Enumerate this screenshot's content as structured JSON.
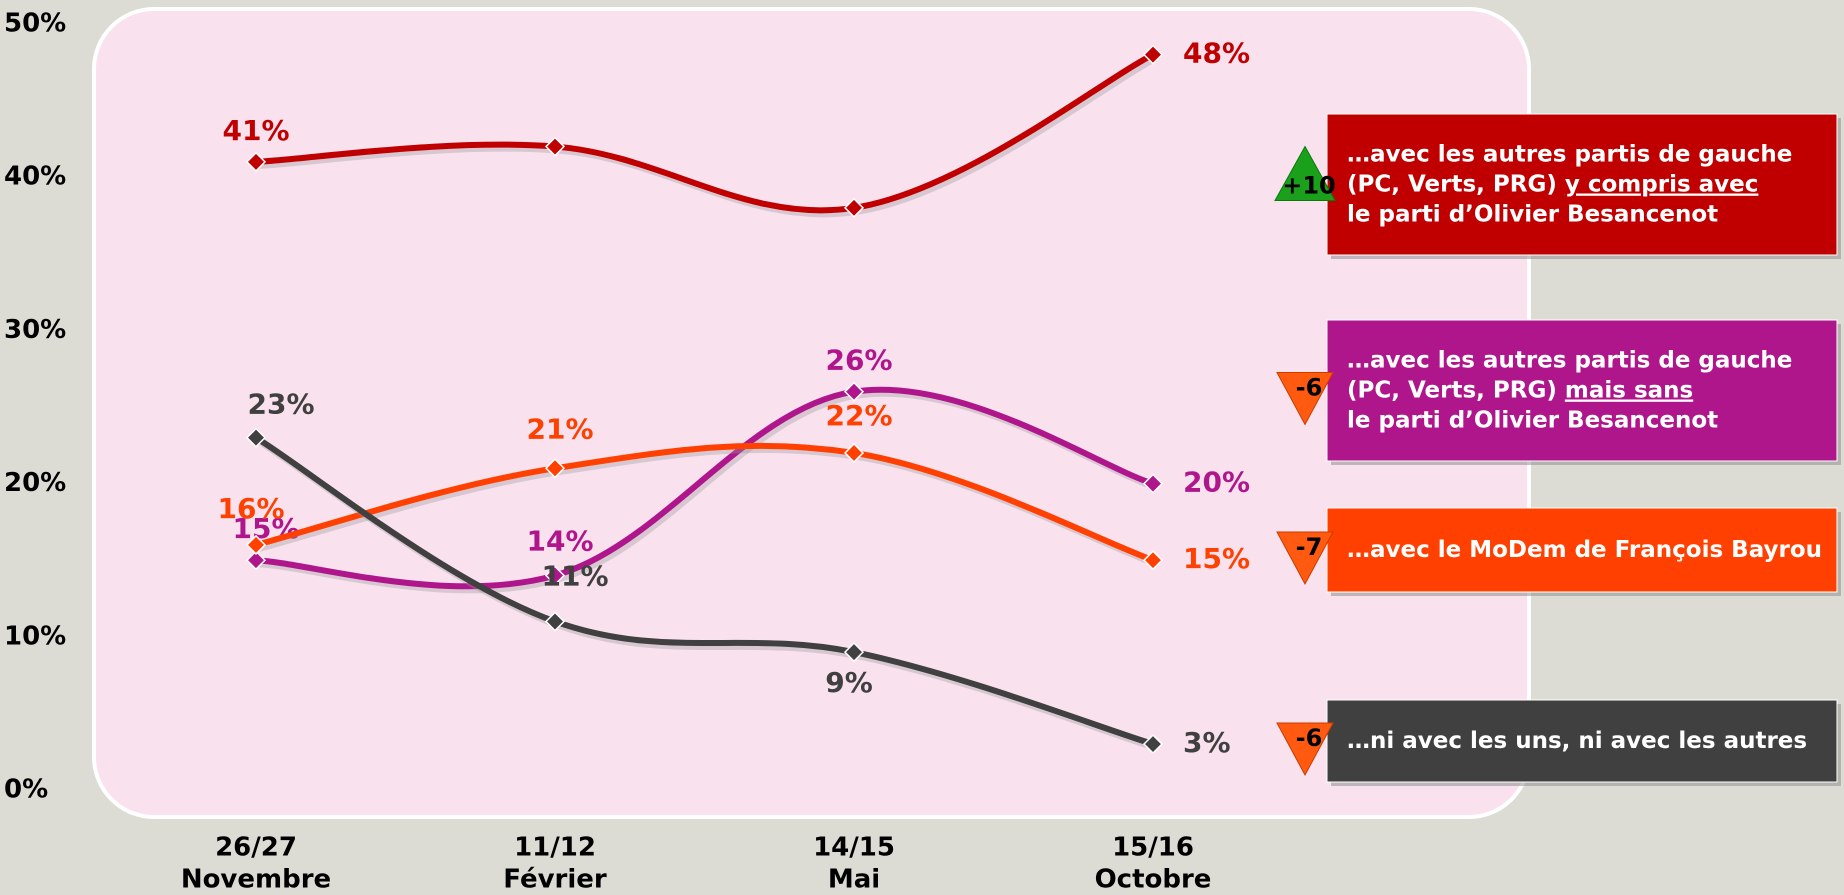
{
  "chart_data": {
    "type": "line",
    "categories": [
      [
        "26/27",
        "Novembre"
      ],
      [
        "11/12",
        "Février"
      ],
      [
        "14/15",
        "Mai"
      ],
      [
        "15/16",
        "Octobre"
      ]
    ],
    "ylim": [
      0,
      50
    ],
    "yticks": [
      {
        "value": 0,
        "label": "0%"
      },
      {
        "value": 10,
        "label": "10%"
      },
      {
        "value": 20,
        "label": "20%"
      },
      {
        "value": 30,
        "label": "30%"
      },
      {
        "value": 40,
        "label": "40%"
      },
      {
        "value": 50,
        "label": "50%"
      }
    ],
    "series": [
      {
        "name": [
          [
            {
              "text": "…avec les autres partis de gauche"
            }
          ],
          [
            {
              "text": "(PC, Verts, PRG) "
            },
            {
              "text": "y compris avec",
              "underline": true
            }
          ],
          [
            {
              "text": "le parti d’Olivier Besancenot"
            }
          ]
        ],
        "color": "#c00000",
        "values": [
          41,
          42,
          38,
          48
        ],
        "value_labels": [
          "41%",
          null,
          null,
          "48%"
        ],
        "change": {
          "value": 10,
          "label": "+10"
        }
      },
      {
        "name": [
          [
            {
              "text": "…avec les autres partis de gauche"
            }
          ],
          [
            {
              "text": "(PC, Verts, PRG) "
            },
            {
              "text": "mais sans",
              "underline": true
            }
          ],
          [
            {
              "text": "le parti d’Olivier Besancenot"
            }
          ]
        ],
        "color": "#b0168c",
        "values": [
          15,
          14,
          26,
          20
        ],
        "value_labels": [
          "15%",
          "14%",
          "26%",
          "20%"
        ],
        "change": {
          "value": -6,
          "label": "-6"
        }
      },
      {
        "name": [
          [
            {
              "text": "…avec le MoDem de François Bayrou"
            }
          ]
        ],
        "color": "#ff4000",
        "values": [
          16,
          21,
          22,
          15
        ],
        "value_labels": [
          "16%",
          "21%",
          "22%",
          "15%"
        ],
        "change": {
          "value": -7,
          "label": "-7"
        }
      },
      {
        "name": [
          [
            {
              "text": "…ni avec les uns, ni avec les autres"
            }
          ]
        ],
        "color": "#404040",
        "values": [
          23,
          11,
          9,
          3
        ],
        "value_labels": [
          "23%",
          "11%",
          "9%",
          "3%"
        ],
        "change": {
          "value": -6,
          "label": "-6"
        }
      }
    ]
  }
}
